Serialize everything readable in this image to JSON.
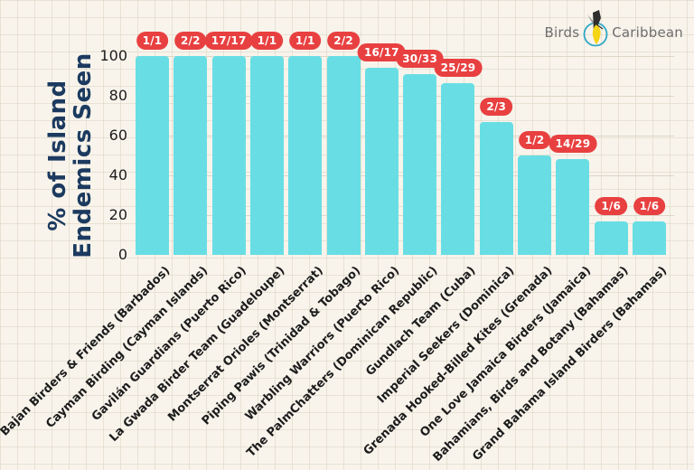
{
  "logo": {
    "left_text": "Birds",
    "right_text": "Caribbean"
  },
  "chart_data": {
    "type": "bar",
    "ylabel_line1": "% of Island",
    "ylabel_line2": "Endemics Seen",
    "ylim": [
      0,
      100
    ],
    "yticks": [
      0,
      20,
      40,
      60,
      80,
      100
    ],
    "grid": "horizontal",
    "bar_color": "#68DEE4",
    "badge_color": "#E84040",
    "categories": [
      "Bajan Birders & Friends (Barbados)",
      "Cayman Birding (Cayman Islands)",
      "Gavilán Guardians (Puerto Rico)",
      "La Gwada Birder Team (Guadeloupe)",
      "Montserrat Orioles (Montserrat)",
      "Piping Pawis (Trinidad & Tobago)",
      "Warbling Warriors (Puerto Rico)",
      "The PalmChatters (Dominican Republic)",
      "Gundlach Team (Cuba)",
      "Imperial Seekers (Dominica)",
      "Grenada Hooked-Billed Kites (Grenada)",
      "One Love Jamaica Birders (Jamaica)",
      "Bahamians, Birds and Botany (Bahamas)",
      "Grand Bahama Island Birders (Bahamas)"
    ],
    "fractions": [
      "1/1",
      "2/2",
      "17/17",
      "1/1",
      "1/1",
      "2/2",
      "16/17",
      "30/33",
      "25/29",
      "2/3",
      "1/2",
      "14/29",
      "1/6",
      "1/6"
    ],
    "values": [
      100,
      100,
      100,
      100,
      100,
      100,
      94.1,
      90.9,
      86.2,
      66.7,
      50,
      48.3,
      16.7,
      16.7
    ]
  }
}
